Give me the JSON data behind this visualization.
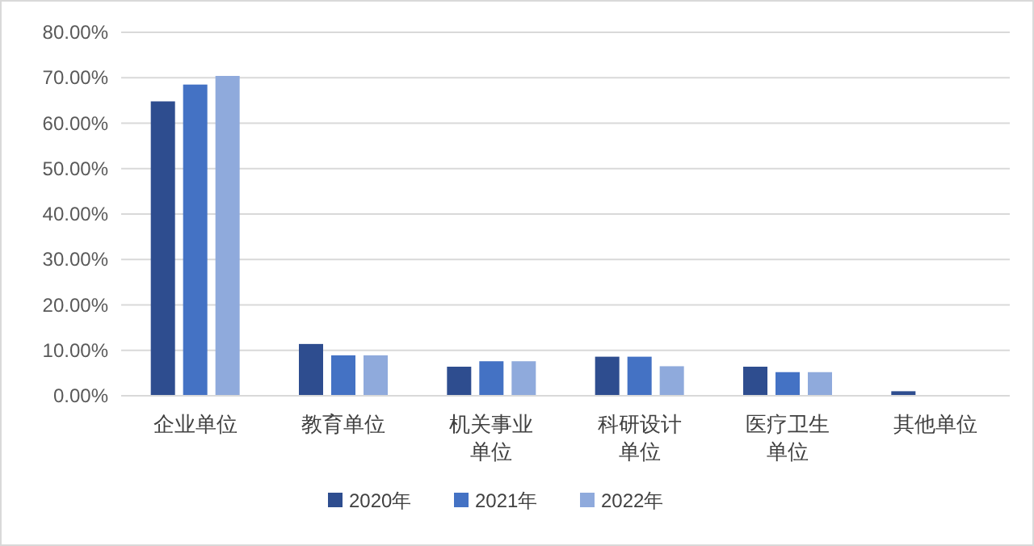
{
  "chart_data": {
    "type": "bar",
    "categories": [
      "企业单位",
      "教育单位",
      "机关事业单位",
      "科研设计单位",
      "医疗卫生单位",
      "其他单位"
    ],
    "series": [
      {
        "name": "2020年",
        "color": "#2e4d8f",
        "values": [
          64.8,
          11.4,
          6.4,
          8.6,
          6.4,
          1.0
        ]
      },
      {
        "name": "2021年",
        "color": "#4472c4",
        "values": [
          68.5,
          8.9,
          7.6,
          8.6,
          5.2,
          0
        ]
      },
      {
        "name": "2022年",
        "color": "#8faadc",
        "values": [
          70.4,
          8.9,
          7.6,
          6.5,
          5.2,
          0
        ]
      }
    ],
    "ylim": [
      0,
      80
    ],
    "yticks": [
      {
        "value": 0,
        "label": "0.00%"
      },
      {
        "value": 10,
        "label": "10.00%"
      },
      {
        "value": 20,
        "label": "20.00%"
      },
      {
        "value": 30,
        "label": "30.00%"
      },
      {
        "value": 40,
        "label": "40.00%"
      },
      {
        "value": 50,
        "label": "50.00%"
      },
      {
        "value": 60,
        "label": "60.00%"
      },
      {
        "value": 70,
        "label": "70.00%"
      },
      {
        "value": 80,
        "label": "80.00%"
      }
    ],
    "grid": "y",
    "legend": "bottom"
  }
}
